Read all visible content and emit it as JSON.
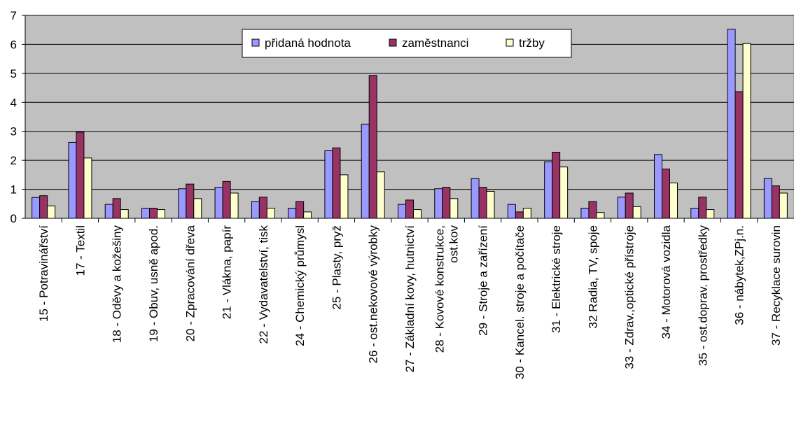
{
  "chart_data": {
    "type": "bar",
    "ylim": [
      0,
      7
    ],
    "yticks": [
      0,
      1,
      2,
      3,
      4,
      5,
      6,
      7
    ],
    "grid": true,
    "legend_position": "top-center",
    "categories": [
      "15 - Potravinářství",
      "17 - Textil",
      "18 - Oděvy a kožešiny",
      "19 - Obuv, usně apod.",
      "20 - Zpracování dřeva",
      "21 - Vlákna, papír",
      "22 - Vydavatelství, tisk",
      "24 - Chemický průmysl",
      "25 - Plasty, pryž",
      "26 - ost.nekovové výrobky",
      "27 - Základní kovy, hutnictví",
      "28 - Kovové konstrukce, ost.kov",
      "29 - Stroje a zařízení",
      "30 - Kancel. stroje a počítače",
      "31 - Elektrické stroje",
      "32 Radia, TV, spoje",
      "33 - Zdrav.,optické přístroje",
      "34 - Motorová vozidla",
      "35 - ost.doprav. prostředky",
      "36 - nábytek,ZPj.n.",
      "37 - Recyklace surovin"
    ],
    "category_lines": [
      [
        "15 - Potravinářství"
      ],
      [
        "17 - Textil"
      ],
      [
        "18 - Oděvy a kožešiny"
      ],
      [
        "19 - Obuv, usně apod."
      ],
      [
        "20 - Zpracování dřeva"
      ],
      [
        "21 - Vlákna, papír"
      ],
      [
        "22 - Vydavatelství, tisk"
      ],
      [
        "24 - Chemický průmysl"
      ],
      [
        "25 - Plasty, pryž"
      ],
      [
        "26 - ost.nekovové výrobky"
      ],
      [
        "27 - Základní kovy, hutnictví"
      ],
      [
        "28 - Kovové konstrukce,",
        "ost.kov"
      ],
      [
        "29 - Stroje a zařízení"
      ],
      [
        "30 - Kancel. stroje a počítače"
      ],
      [
        "31 - Elektrické stroje"
      ],
      [
        "32 Radia, TV, spoje"
      ],
      [
        "33 - Zdrav.,optické přístroje"
      ],
      [
        "34 - Motorová vozidla"
      ],
      [
        "35 - ost.doprav. prostředky"
      ],
      [
        "36 - nábytek,ZPj.n."
      ],
      [
        "37 - Recyklace surovin"
      ]
    ],
    "series": [
      {
        "name": "přidaná hodnota",
        "color": "#9999ff",
        "values": [
          0.72,
          2.62,
          0.48,
          0.35,
          1.02,
          1.07,
          0.58,
          0.35,
          2.33,
          3.25,
          0.48,
          1.02,
          1.37,
          0.48,
          1.95,
          0.35,
          0.73,
          2.2,
          0.35,
          6.52,
          1.37
        ]
      },
      {
        "name": "zaměstnanci",
        "color": "#993366",
        "values": [
          0.78,
          2.97,
          0.68,
          0.35,
          1.18,
          1.27,
          0.73,
          0.58,
          2.43,
          4.93,
          0.63,
          1.07,
          1.07,
          0.22,
          2.28,
          0.58,
          0.87,
          1.7,
          0.73,
          4.37,
          1.12
        ]
      },
      {
        "name": "tržby",
        "color": "#ffffcc",
        "values": [
          0.43,
          2.08,
          0.3,
          0.3,
          0.68,
          0.87,
          0.35,
          0.22,
          1.5,
          1.6,
          0.3,
          0.68,
          0.93,
          0.35,
          1.77,
          0.2,
          0.4,
          1.22,
          0.3,
          6.03,
          0.87
        ]
      }
    ]
  },
  "colors": {
    "plot_background": "#c0c0c0",
    "gridline": "#000000",
    "bar_outline": "#000000"
  }
}
